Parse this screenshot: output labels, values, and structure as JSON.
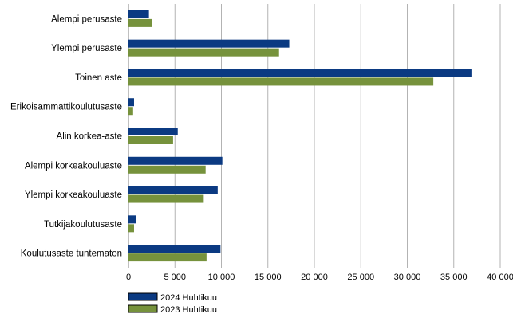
{
  "chart_data": {
    "type": "bar",
    "orientation": "horizontal",
    "categories": [
      "Alempi perusaste",
      "Ylempi perusaste",
      "Toinen aste",
      "Erikoisammattikoulutusaste",
      "Alin korkea-aste",
      "Alempi korkeakouluaste",
      "Ylempi korkeakouluaste",
      "Tutkijakoulutusaste",
      "Koulutusaste tuntematon"
    ],
    "series": [
      {
        "name": "2024 Huhtikuu",
        "color": "#0b3a82",
        "values": [
          2200,
          17300,
          36900,
          600,
          5300,
          10100,
          9600,
          800,
          9900
        ]
      },
      {
        "name": "2023 Huhtikuu",
        "color": "#76923c",
        "values": [
          2500,
          16200,
          32800,
          500,
          4800,
          8300,
          8100,
          600,
          8400
        ]
      }
    ],
    "xlim": [
      0,
      40000
    ],
    "xticks": [
      0,
      5000,
      10000,
      15000,
      20000,
      25000,
      30000,
      35000,
      40000
    ],
    "xtick_labels": [
      "0",
      "5 000",
      "10 000",
      "15 000",
      "20 000",
      "25 000",
      "30 000",
      "35 000",
      "40 000"
    ],
    "grid": "vertical",
    "legend_position": "bottom-left"
  }
}
